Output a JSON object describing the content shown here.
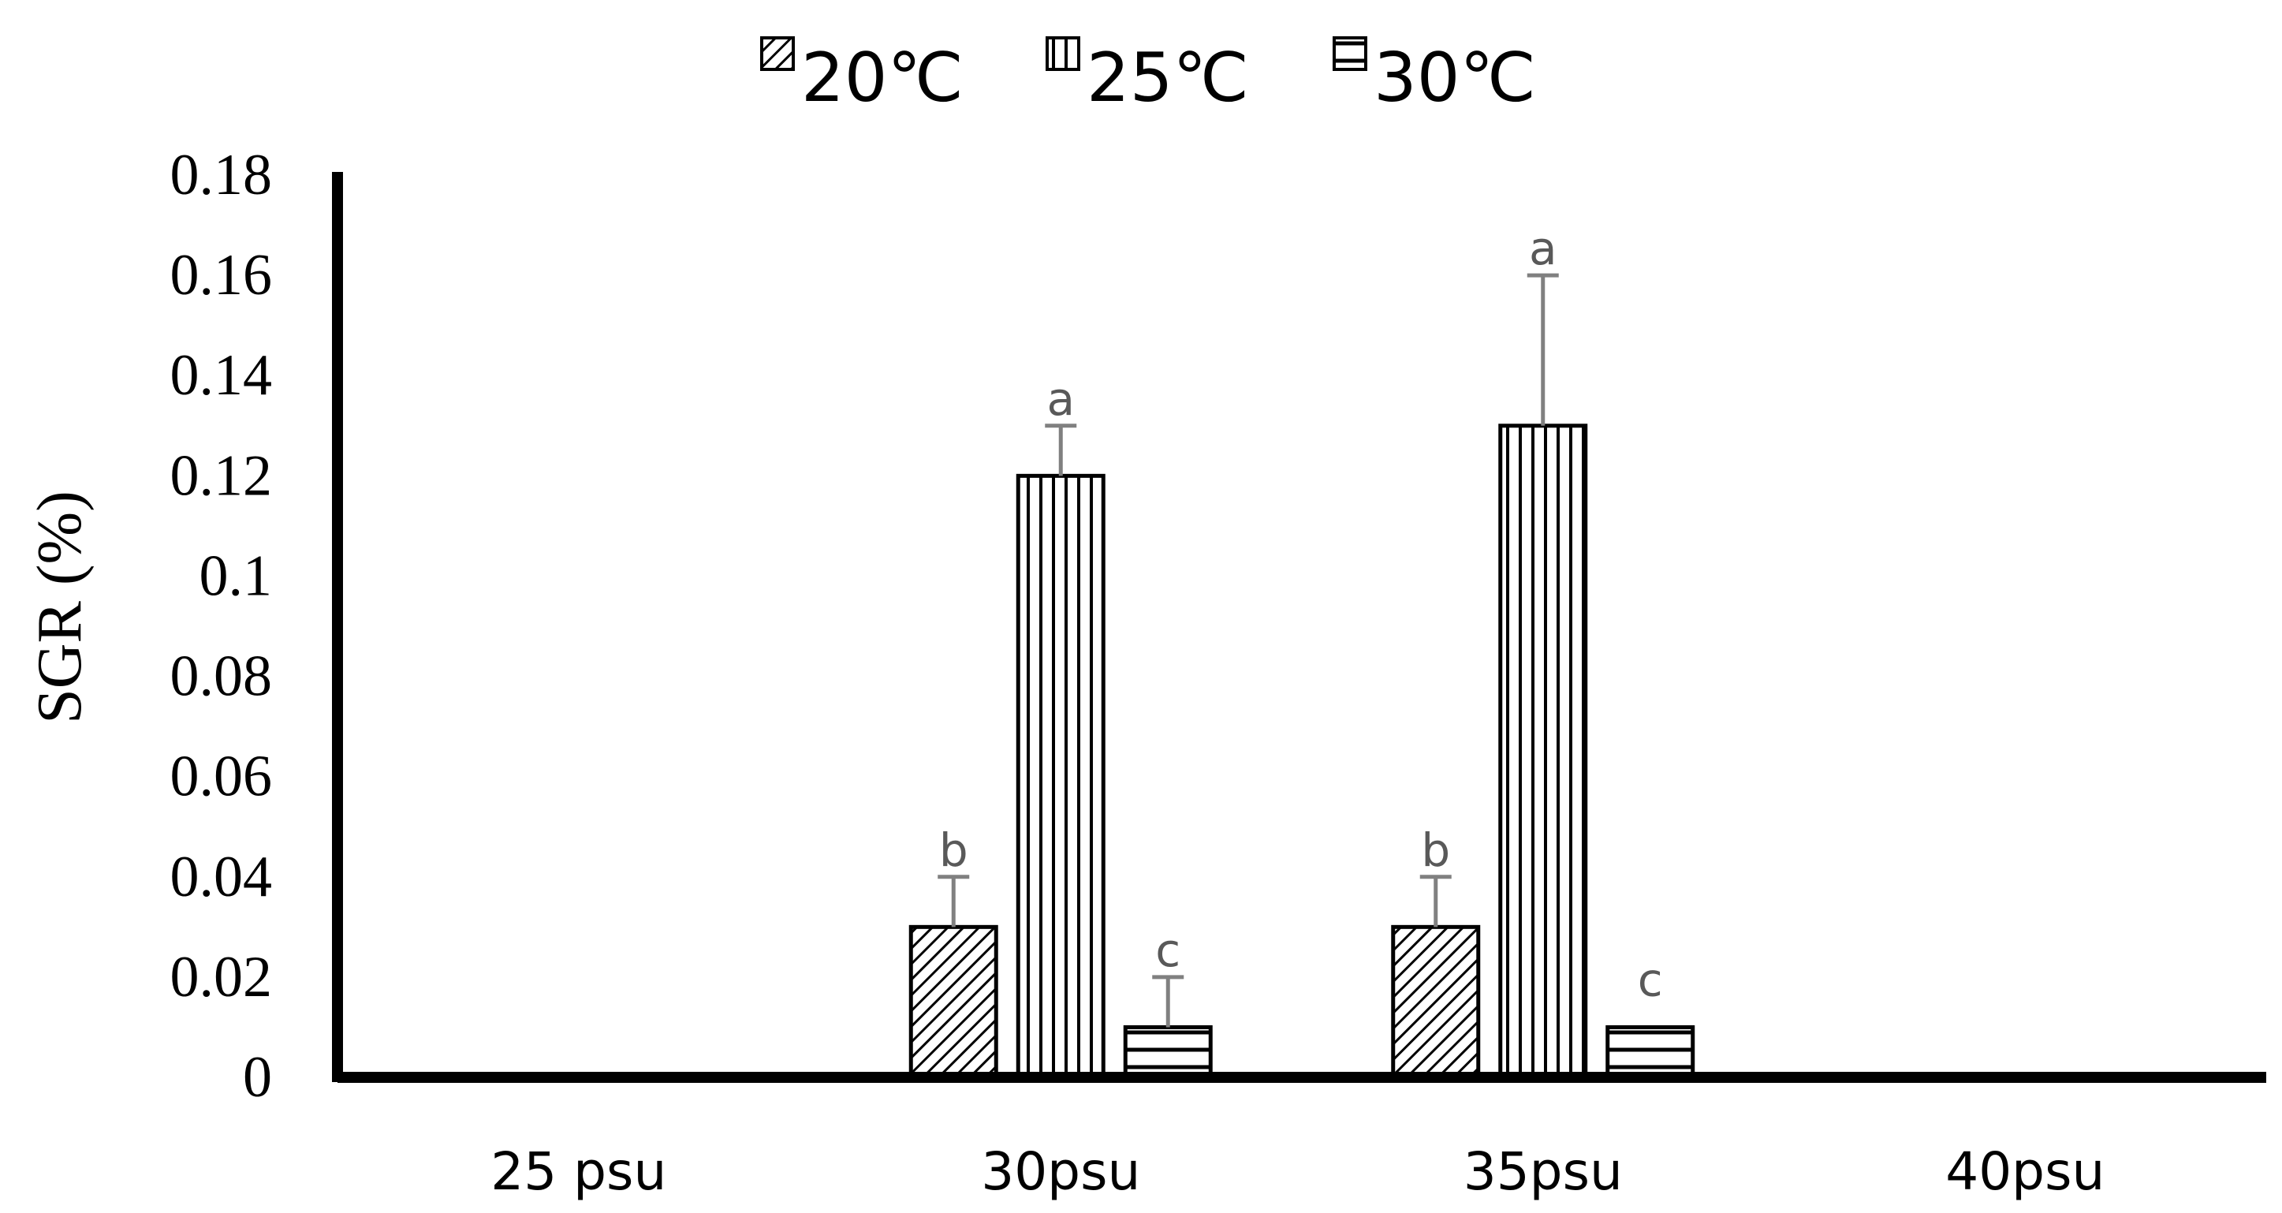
{
  "chart_data": {
    "type": "bar",
    "title": "",
    "xlabel": "",
    "ylabel": "SGR (%)",
    "ylim": [
      0,
      0.18
    ],
    "yticks": [
      "0",
      "0.02",
      "0.04",
      "0.06",
      "0.08",
      "0.1",
      "0.12",
      "0.14",
      "0.16",
      "0.18"
    ],
    "grid": false,
    "legend_position": "top-center",
    "categories": [
      "25 psu",
      "30psu",
      "35psu",
      "40psu"
    ],
    "series": [
      {
        "name": "20℃",
        "pattern": "diagonal-hatch",
        "values": [
          0,
          0.03,
          0.03,
          0
        ],
        "error": [
          0,
          0.01,
          0.01,
          0
        ],
        "labels": [
          "",
          "b",
          "b",
          ""
        ]
      },
      {
        "name": "25℃",
        "pattern": "vertical-lines",
        "values": [
          0,
          0.12,
          0.13,
          0
        ],
        "error": [
          0,
          0.01,
          0.03,
          0
        ],
        "labels": [
          "",
          "a",
          "a",
          ""
        ]
      },
      {
        "name": "30℃",
        "pattern": "horizontal-lines",
        "values": [
          0,
          0.01,
          0.01,
          0
        ],
        "error": [
          0,
          0.01,
          0,
          0
        ],
        "labels": [
          "",
          "c",
          "c",
          ""
        ]
      }
    ],
    "colors": {
      "bar_stroke": "#000000",
      "error_bar": "#808080",
      "sig_text": "#595959",
      "axis": "#000000"
    }
  }
}
